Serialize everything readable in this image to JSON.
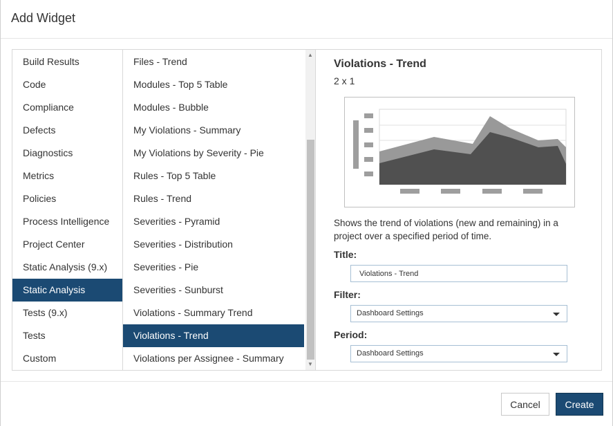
{
  "dialog": {
    "title": "Add Widget"
  },
  "categories": [
    {
      "label": "Build Results",
      "selected": false
    },
    {
      "label": "Code",
      "selected": false
    },
    {
      "label": "Compliance",
      "selected": false
    },
    {
      "label": "Defects",
      "selected": false
    },
    {
      "label": "Diagnostics",
      "selected": false
    },
    {
      "label": "Metrics",
      "selected": false
    },
    {
      "label": "Policies",
      "selected": false
    },
    {
      "label": "Process Intelligence",
      "selected": false
    },
    {
      "label": "Project Center",
      "selected": false
    },
    {
      "label": "Static Analysis (9.x)",
      "selected": false
    },
    {
      "label": "Static Analysis",
      "selected": true
    },
    {
      "label": "Tests (9.x)",
      "selected": false
    },
    {
      "label": "Tests",
      "selected": false
    },
    {
      "label": "Custom",
      "selected": false
    }
  ],
  "widgets": [
    {
      "label": "Files - Trend",
      "selected": false
    },
    {
      "label": "Modules - Top 5 Table",
      "selected": false
    },
    {
      "label": "Modules - Bubble",
      "selected": false
    },
    {
      "label": "My Violations - Summary",
      "selected": false
    },
    {
      "label": "My Violations by Severity - Pie",
      "selected": false
    },
    {
      "label": "Rules - Top 5 Table",
      "selected": false
    },
    {
      "label": "Rules - Trend",
      "selected": false
    },
    {
      "label": "Severities - Pyramid",
      "selected": false
    },
    {
      "label": "Severities - Distribution",
      "selected": false
    },
    {
      "label": "Severities - Pie",
      "selected": false
    },
    {
      "label": "Severities - Sunburst",
      "selected": false
    },
    {
      "label": "Violations - Summary Trend",
      "selected": false
    },
    {
      "label": "Violations - Trend",
      "selected": true
    },
    {
      "label": "Violations per Assignee - Summary",
      "selected": false
    }
  ],
  "scrollbar": {
    "up_icon": "triangle-up-icon",
    "down_icon": "triangle-down-icon"
  },
  "detail": {
    "title": "Violations - Trend",
    "size": "2 x 1",
    "preview_icon": "area-trend-chart-icon",
    "description": "Shows the trend of violations (new and remaining) in a project over a specified period of time.",
    "title_label": "Title:",
    "title_value": "Violations - Trend",
    "filter_label": "Filter:",
    "filter_value": "Dashboard Settings",
    "period_label": "Period:",
    "period_value": "Dashboard Settings"
  },
  "buttons": {
    "cancel": "Cancel",
    "create": "Create"
  },
  "colors": {
    "accent": "#1b4a73",
    "preview_dark": "#505050",
    "preview_light": "#999999",
    "preview_axis": "#9e9e9e"
  }
}
